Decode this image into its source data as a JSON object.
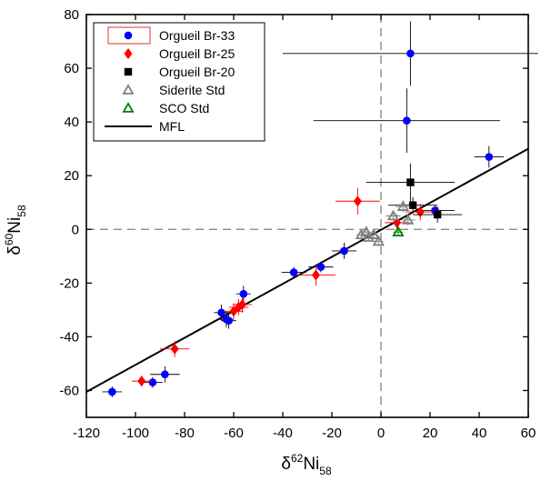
{
  "chart_data": {
    "type": "scatter",
    "title": "",
    "xlabel": {
      "prefix": "δ",
      "sup": "62",
      "main": "Ni",
      "sub": "58"
    },
    "ylabel": {
      "prefix": "δ",
      "sup": "60",
      "main": "Ni",
      "sub": "58"
    },
    "xlim": [
      -120,
      60
    ],
    "ylim": [
      -70,
      80
    ],
    "xticks": [
      -120,
      -100,
      -80,
      -60,
      -40,
      -20,
      0,
      20,
      40,
      60
    ],
    "yticks": [
      -60,
      -40,
      -20,
      0,
      20,
      40,
      60,
      80
    ],
    "grid": false,
    "reference_lines": [
      {
        "axis": "x",
        "value": 0,
        "style": "dashed"
      },
      {
        "axis": "y",
        "value": 0,
        "style": "dashed"
      }
    ],
    "legend": {
      "position": "top-left"
    },
    "series": [
      {
        "name": "Orgueil Br-33",
        "marker": "circle",
        "color": "#0000ff",
        "errorbar_color": "#000000",
        "points": [
          {
            "x": -109.5,
            "y": -60.5,
            "xerr": 4,
            "yerr": 2
          },
          {
            "x": -93,
            "y": -57,
            "xerr": 4,
            "yerr": 2
          },
          {
            "x": -88,
            "y": -54,
            "xerr": 6,
            "yerr": 3
          },
          {
            "x": -65,
            "y": -31,
            "xerr": 3,
            "yerr": 3
          },
          {
            "x": -63,
            "y": -33.5,
            "xerr": 3,
            "yerr": 3
          },
          {
            "x": -62,
            "y": -34,
            "xerr": 3,
            "yerr": 3
          },
          {
            "x": -56,
            "y": -24,
            "xerr": 3,
            "yerr": 3
          },
          {
            "x": -35.5,
            "y": -16,
            "xerr": 5,
            "yerr": 2
          },
          {
            "x": -24.5,
            "y": -14,
            "xerr": 5,
            "yerr": 2
          },
          {
            "x": -15,
            "y": -8,
            "xerr": 5,
            "yerr": 3
          },
          {
            "x": 12,
            "y": 65.5,
            "xerr": 52,
            "yerr": 12
          },
          {
            "x": 10.5,
            "y": 40.5,
            "xerr": 38,
            "yerr": 12
          },
          {
            "x": 44,
            "y": 27,
            "xerr": 6,
            "yerr": 4
          },
          {
            "x": 22,
            "y": 7,
            "xerr": 8,
            "yerr": 2
          }
        ]
      },
      {
        "name": "Orgueil Br-25",
        "marker": "diamond",
        "color": "#ff0000",
        "errorbar_color": "#ff0000",
        "points": [
          {
            "x": -97.5,
            "y": -56.5,
            "xerr": 4,
            "yerr": 2
          },
          {
            "x": -84,
            "y": -44.5,
            "xerr": 6,
            "yerr": 3
          },
          {
            "x": -60,
            "y": -30.5,
            "xerr": 4,
            "yerr": 3
          },
          {
            "x": -58,
            "y": -29,
            "xerr": 4,
            "yerr": 3
          },
          {
            "x": -56.5,
            "y": -28,
            "xerr": 4,
            "yerr": 3
          },
          {
            "x": -26.5,
            "y": -17,
            "xerr": 8,
            "yerr": 4
          },
          {
            "x": -9.5,
            "y": 10.5,
            "xerr": 9,
            "yerr": 5
          },
          {
            "x": 6.5,
            "y": 2.5,
            "xerr": 5,
            "yerr": 3
          },
          {
            "x": 16,
            "y": 6.5,
            "xerr": 6,
            "yerr": 3
          }
        ]
      },
      {
        "name": "Orgueil Br-20",
        "marker": "square",
        "color": "#000000",
        "errorbar_color": "#000000",
        "points": [
          {
            "x": 12,
            "y": 17.5,
            "xerr": 18,
            "yerr": 7
          },
          {
            "x": 13,
            "y": 9,
            "xerr": 10,
            "yerr": 3
          },
          {
            "x": 23,
            "y": 5.5,
            "xerr": 10,
            "yerr": 3
          }
        ]
      },
      {
        "name": "Siderite Std",
        "marker": "triangle-open",
        "color": "#808080",
        "errorbar_color": "#808080",
        "points": [
          {
            "x": -8,
            "y": -2,
            "xerr": 2,
            "yerr": 1
          },
          {
            "x": -6,
            "y": -1,
            "xerr": 2,
            "yerr": 1
          },
          {
            "x": -5,
            "y": -3,
            "xerr": 2,
            "yerr": 1
          },
          {
            "x": -3,
            "y": -2,
            "xerr": 2,
            "yerr": 1
          },
          {
            "x": -1,
            "y": -4.5,
            "xerr": 2,
            "yerr": 1
          },
          {
            "x": 5,
            "y": 5,
            "xerr": 3,
            "yerr": 2
          },
          {
            "x": 9,
            "y": 8.5,
            "xerr": 3,
            "yerr": 2
          },
          {
            "x": 11,
            "y": 3.5,
            "xerr": 3,
            "yerr": 2
          }
        ]
      },
      {
        "name": "SCO Std",
        "marker": "triangle-open",
        "color": "#008000",
        "errorbar_color": "#008000",
        "points": [
          {
            "x": 7,
            "y": -1,
            "xerr": 2,
            "yerr": 1
          }
        ]
      },
      {
        "name": "MFL",
        "marker": "line",
        "color": "#000000",
        "line": [
          {
            "x": -120,
            "y": -60.5
          },
          {
            "x": 60,
            "y": 30
          }
        ]
      }
    ]
  }
}
